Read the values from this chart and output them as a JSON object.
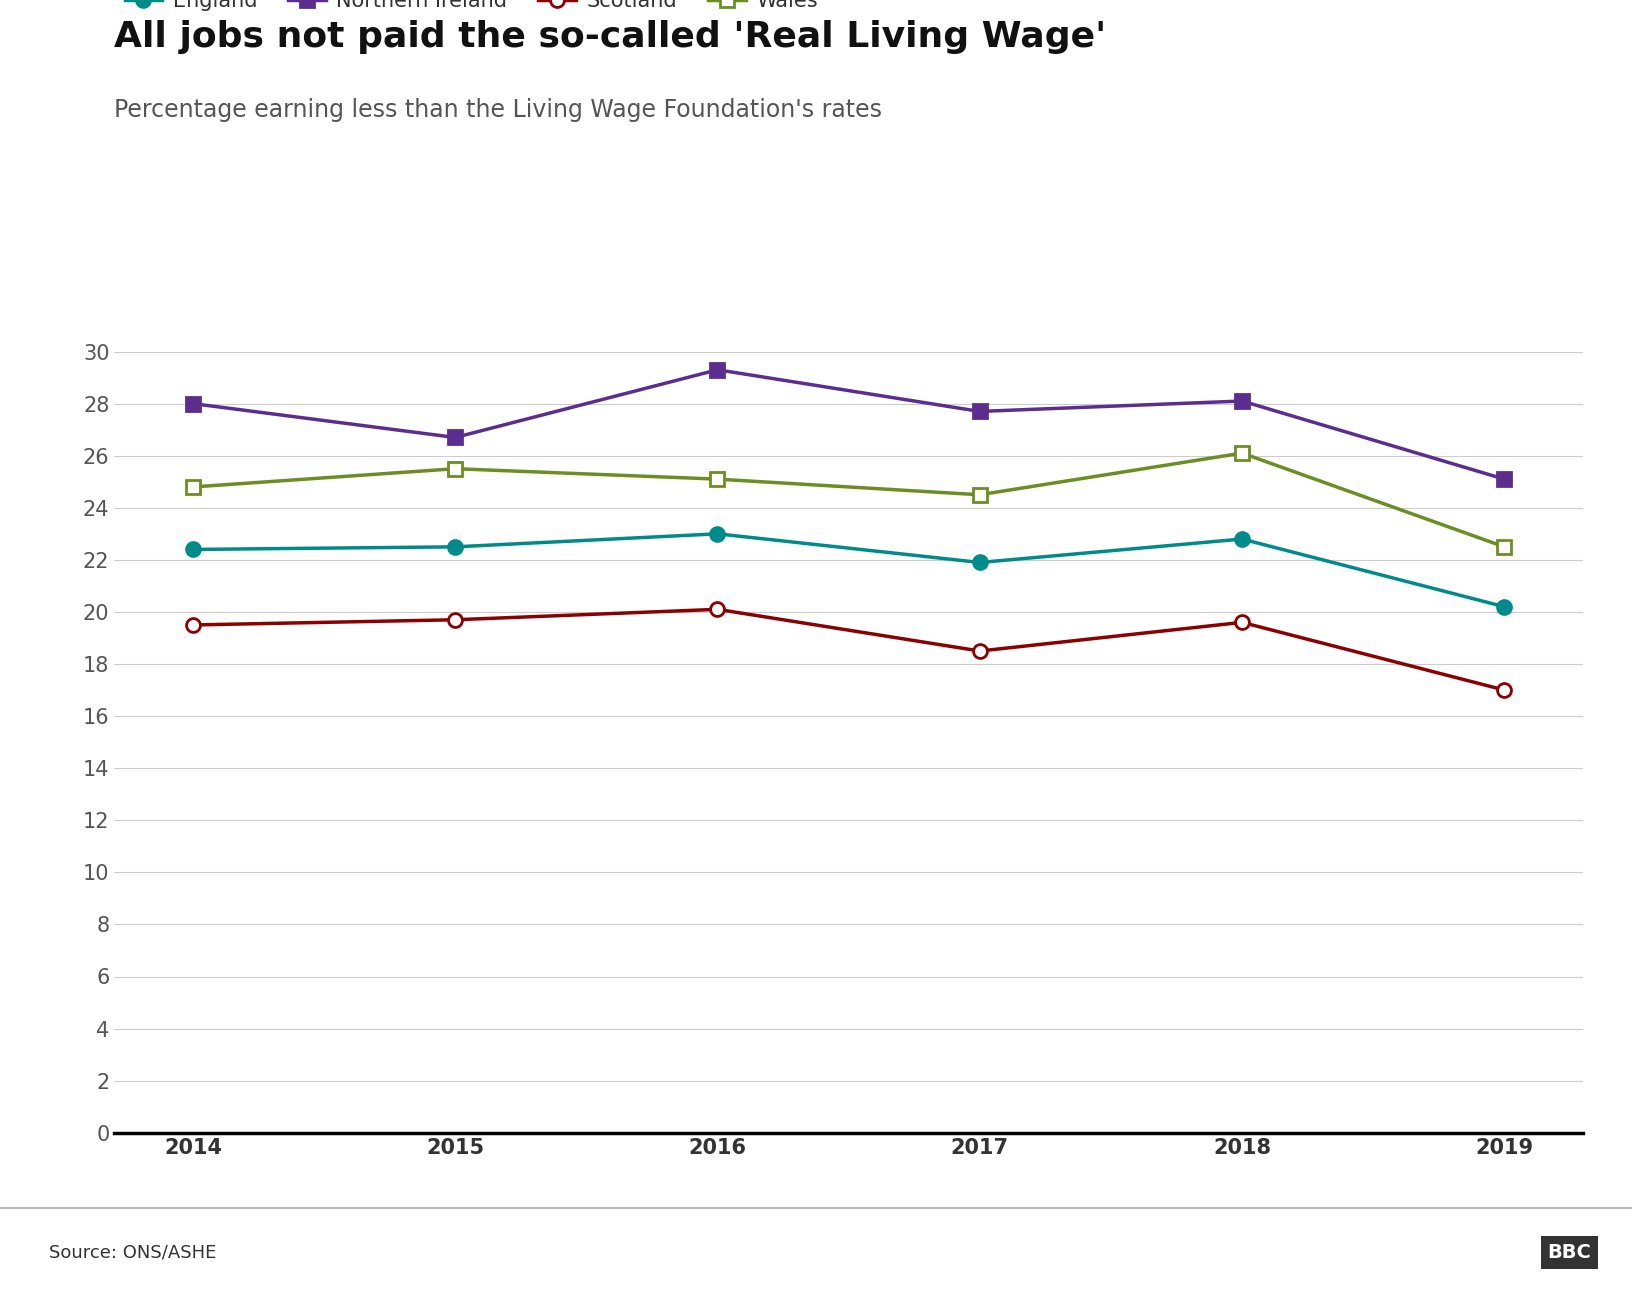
{
  "title": "All jobs not paid the so-called 'Real Living Wage'",
  "subtitle": "Percentage earning less than the Living Wage Foundation's rates",
  "source": "Source: ONS/ASHE",
  "years": [
    2014,
    2015,
    2016,
    2017,
    2018,
    2019
  ],
  "series": [
    {
      "name": "England",
      "values": [
        22.4,
        22.5,
        23.0,
        21.9,
        22.8,
        20.2
      ],
      "color": "#008B8B",
      "marker": "o",
      "marker_style": "filled"
    },
    {
      "name": "Northern Ireland",
      "values": [
        28.0,
        26.7,
        29.3,
        27.7,
        28.1,
        25.1
      ],
      "color": "#5B2D8E",
      "marker": "s",
      "marker_style": "filled"
    },
    {
      "name": "Scotland",
      "values": [
        19.5,
        19.7,
        20.1,
        18.5,
        19.6,
        17.0
      ],
      "color": "#8B0000",
      "marker": "o",
      "marker_style": "open"
    },
    {
      "name": "Wales",
      "values": [
        24.8,
        25.5,
        25.1,
        24.5,
        26.1,
        22.5
      ],
      "color": "#6B8E23",
      "marker": "s",
      "marker_style": "open"
    }
  ],
  "ylim": [
    0,
    30
  ],
  "yticks": [
    0,
    2,
    4,
    6,
    8,
    10,
    12,
    14,
    16,
    18,
    20,
    22,
    24,
    26,
    28,
    30
  ],
  "background_color": "#ffffff",
  "title_fontsize": 26,
  "subtitle_fontsize": 17,
  "tick_fontsize": 15,
  "legend_fontsize": 15,
  "source_fontsize": 13,
  "linewidth": 2.5,
  "markersize": 10
}
